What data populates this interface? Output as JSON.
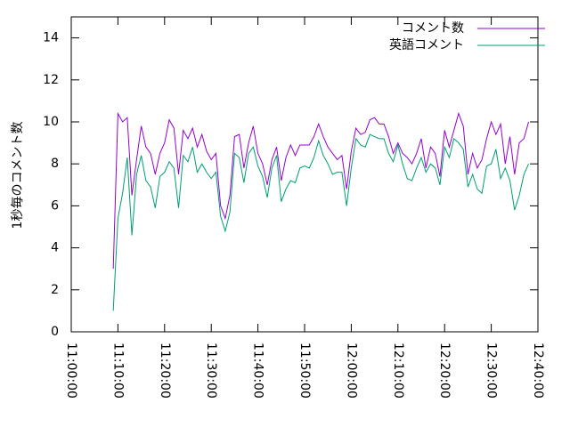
{
  "chart_data": {
    "type": "line",
    "y_label": "1秒毎のコメント数",
    "x": [
      "11:09:00",
      "11:10:00",
      "11:11:00",
      "11:12:00",
      "11:13:00",
      "11:14:00",
      "11:15:00",
      "11:16:00",
      "11:17:00",
      "11:18:00",
      "11:19:00",
      "11:20:00",
      "11:21:00",
      "11:22:00",
      "11:23:00",
      "11:24:00",
      "11:25:00",
      "11:26:00",
      "11:27:00",
      "11:28:00",
      "11:29:00",
      "11:30:00",
      "11:31:00",
      "11:32:00",
      "11:33:00",
      "11:34:00",
      "11:35:00",
      "11:36:00",
      "11:37:00",
      "11:38:00",
      "11:39:00",
      "11:40:00",
      "11:41:00",
      "11:42:00",
      "11:43:00",
      "11:44:00",
      "11:45:00",
      "11:46:00",
      "11:47:00",
      "11:48:00",
      "11:49:00",
      "11:50:00",
      "11:51:00",
      "11:52:00",
      "11:53:00",
      "11:54:00",
      "11:55:00",
      "11:56:00",
      "11:57:00",
      "11:58:00",
      "11:59:00",
      "12:00:00",
      "12:01:00",
      "12:02:00",
      "12:03:00",
      "12:04:00",
      "12:05:00",
      "12:06:00",
      "12:07:00",
      "12:08:00",
      "12:09:00",
      "12:10:00",
      "12:11:00",
      "12:12:00",
      "12:13:00",
      "12:14:00",
      "12:15:00",
      "12:16:00",
      "12:17:00",
      "12:18:00",
      "12:19:00",
      "12:20:00",
      "12:21:00",
      "12:22:00",
      "12:23:00",
      "12:24:00",
      "12:25:00",
      "12:26:00",
      "12:27:00",
      "12:28:00",
      "12:29:00",
      "12:30:00",
      "12:31:00",
      "12:32:00",
      "12:33:00",
      "12:34:00",
      "12:35:00",
      "12:36:00",
      "12:37:00",
      "12:38:00"
    ],
    "series": [
      {
        "name": "コメント数",
        "color": "#9400d3",
        "values": [
          3.0,
          10.4,
          10.0,
          10.2,
          6.5,
          8.2,
          9.8,
          8.8,
          8.5,
          7.5,
          8.5,
          9.0,
          10.1,
          9.7,
          7.5,
          9.6,
          9.2,
          9.7,
          8.8,
          9.4,
          8.6,
          8.2,
          8.5,
          6.0,
          5.4,
          6.5,
          9.3,
          9.4,
          7.8,
          9.0,
          9.8,
          8.5,
          8.0,
          7.0,
          8.2,
          8.8,
          7.2,
          8.3,
          8.9,
          8.4,
          8.9,
          8.9,
          8.9,
          9.3,
          9.9,
          9.3,
          8.8,
          8.5,
          8.2,
          8.4,
          6.8,
          8.6,
          9.7,
          9.4,
          9.5,
          10.1,
          10.2,
          9.9,
          9.9,
          9.3,
          8.5,
          9.0,
          8.5,
          8.3,
          8.0,
          8.5,
          9.2,
          7.8,
          8.8,
          8.5,
          7.4,
          9.6,
          8.8,
          9.6,
          10.4,
          9.8,
          7.5,
          8.5,
          7.8,
          8.2,
          9.2,
          10.0,
          9.4,
          9.9,
          8.0,
          9.3,
          7.5,
          9.0,
          9.2,
          10.0
        ]
      },
      {
        "name": "英語コメント",
        "color": "#009e73",
        "values": [
          1.0,
          5.4,
          6.6,
          8.3,
          4.6,
          7.5,
          8.4,
          7.2,
          6.9,
          5.9,
          7.4,
          7.6,
          8.1,
          7.8,
          5.9,
          8.4,
          8.1,
          8.8,
          7.6,
          8.0,
          7.6,
          7.3,
          7.6,
          5.5,
          4.8,
          5.7,
          8.5,
          8.3,
          7.1,
          8.5,
          8.8,
          7.9,
          7.4,
          6.4,
          7.8,
          8.4,
          6.2,
          6.8,
          7.2,
          7.1,
          7.8,
          7.9,
          7.8,
          8.3,
          9.1,
          8.4,
          8.0,
          7.5,
          7.6,
          7.6,
          6.0,
          7.8,
          9.2,
          8.9,
          8.8,
          9.4,
          9.3,
          9.2,
          9.2,
          8.5,
          8.1,
          8.9,
          8.0,
          7.3,
          7.2,
          7.8,
          8.3,
          7.6,
          8.0,
          7.8,
          7.0,
          8.8,
          8.3,
          9.2,
          9.0,
          8.7,
          6.9,
          7.5,
          6.8,
          6.6,
          7.9,
          8.0,
          8.7,
          7.3,
          7.8,
          7.2,
          5.8,
          6.5,
          7.5,
          8.0
        ]
      }
    ],
    "xlim": [
      "11:00:00",
      "12:40:00"
    ],
    "xticks": [
      "11:00:00",
      "11:10:00",
      "11:20:00",
      "11:30:00",
      "11:40:00",
      "11:50:00",
      "12:00:00",
      "12:10:00",
      "12:20:00",
      "12:30:00",
      "12:40:00"
    ],
    "ylim": [
      0,
      15
    ],
    "yticks": [
      0,
      2,
      4,
      6,
      8,
      10,
      12,
      14
    ],
    "legend": "top-right"
  }
}
